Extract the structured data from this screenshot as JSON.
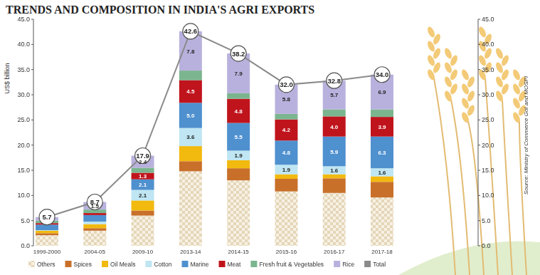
{
  "chart_data": {
    "type": "bar",
    "title": "TRENDS AND COMPOSITION IN INDIA'S AGRI EXPORTS",
    "y_label": "US$ billion",
    "source": "Source: Ministry of Commerce GoI and MOSPI",
    "stacked": true,
    "data_labels": true,
    "grid": false,
    "legend": "bottom",
    "categories": [
      "1999-2000",
      "2004-05",
      "2009-10",
      "2013-14",
      "2014-15",
      "2015-16",
      "2016-17",
      "2017-18"
    ],
    "ylim": [
      0,
      45
    ],
    "yticks": [
      {
        "value": 0,
        "label": "0.0"
      },
      {
        "value": 5,
        "label": "5.0"
      },
      {
        "value": 10,
        "label": "10.0"
      },
      {
        "value": 15,
        "label": "15.0"
      },
      {
        "value": 20,
        "label": "20.0"
      },
      {
        "value": 25,
        "label": "25.0"
      },
      {
        "value": 30,
        "label": "30.0"
      },
      {
        "value": 35,
        "label": "35.0"
      },
      {
        "value": 40,
        "label": "40.0"
      },
      {
        "value": 45,
        "label": "45.0"
      }
    ],
    "y2lim": [
      0,
      45
    ],
    "y2ticks": [
      {
        "value": 0,
        "label": "0.0"
      },
      {
        "value": 5,
        "label": "5.0"
      },
      {
        "value": 10,
        "label": "10.0"
      },
      {
        "value": 15,
        "label": "15.0"
      },
      {
        "value": 20,
        "label": "20.0"
      },
      {
        "value": 25,
        "label": "25.0"
      },
      {
        "value": 30,
        "label": "30.0"
      },
      {
        "value": 35,
        "label": "35.0"
      },
      {
        "value": 40,
        "label": "40.0"
      },
      {
        "value": 45,
        "label": "45.0"
      }
    ],
    "series": [
      {
        "name": "Others",
        "color": "#e4d6b8",
        "values": [
          2.1,
          3.0,
          6.0,
          14.8,
          13.0,
          10.8,
          10.5,
          9.6
        ]
      },
      {
        "name": "Spices",
        "color": "#c8702a",
        "values": [
          0.4,
          0.5,
          1.0,
          2.0,
          2.4,
          2.5,
          2.9,
          3.1
        ]
      },
      {
        "name": "Oil Meals",
        "color": "#f2b90f",
        "values": [
          0.5,
          0.8,
          2.0,
          3.0,
          1.6,
          0.9,
          0.8,
          1.1
        ]
      },
      {
        "name": "Cotton",
        "color": "#bfe6f2",
        "values": [
          0.1,
          0.5,
          2.1,
          3.6,
          1.9,
          1.9,
          1.6,
          1.6
        ],
        "value_labels": [
          null,
          null,
          "2.1",
          "3.6",
          "1.9",
          "1.9",
          "1.6",
          "1.6"
        ]
      },
      {
        "name": "Marine",
        "color": "#4f90cf",
        "values": [
          1.1,
          1.3,
          2.1,
          5.0,
          5.5,
          4.8,
          5.9,
          6.3
        ],
        "value_labels": [
          null,
          null,
          "2.1",
          "5.0",
          "5.5",
          "4.8",
          "5.9",
          "6.3"
        ]
      },
      {
        "name": "Meat",
        "color": "#c0141d",
        "values": [
          0.3,
          0.4,
          1.3,
          4.5,
          4.8,
          4.2,
          4.0,
          3.9
        ],
        "value_labels": [
          null,
          null,
          "1.3",
          "4.5",
          "4.8",
          "4.2",
          "4.0",
          "3.9"
        ]
      },
      {
        "name": "Fresh fruit & Vegetables",
        "color": "#7bb58f",
        "values": [
          0.5,
          0.7,
          1.0,
          1.9,
          1.1,
          1.1,
          1.4,
          1.5
        ]
      },
      {
        "name": "Rice",
        "color": "#b9b1dd",
        "values": [
          0.7,
          1.5,
          2.4,
          7.8,
          7.9,
          5.8,
          5.7,
          6.9
        ],
        "value_labels": [
          null,
          "1.5",
          "2.4",
          "7.8",
          "7.9",
          "5.8",
          "5.7",
          "6.9"
        ]
      },
      {
        "name": "Total",
        "type": "line",
        "marker": "circle",
        "color": "#8a8a8a",
        "values": [
          5.7,
          8.7,
          17.9,
          42.6,
          38.2,
          32.0,
          32.8,
          34.0
        ],
        "value_labels": [
          "5.7",
          "8.7",
          "17.9",
          "42.6",
          "38.2",
          "32.0",
          "32.8",
          "34.0"
        ]
      }
    ]
  }
}
